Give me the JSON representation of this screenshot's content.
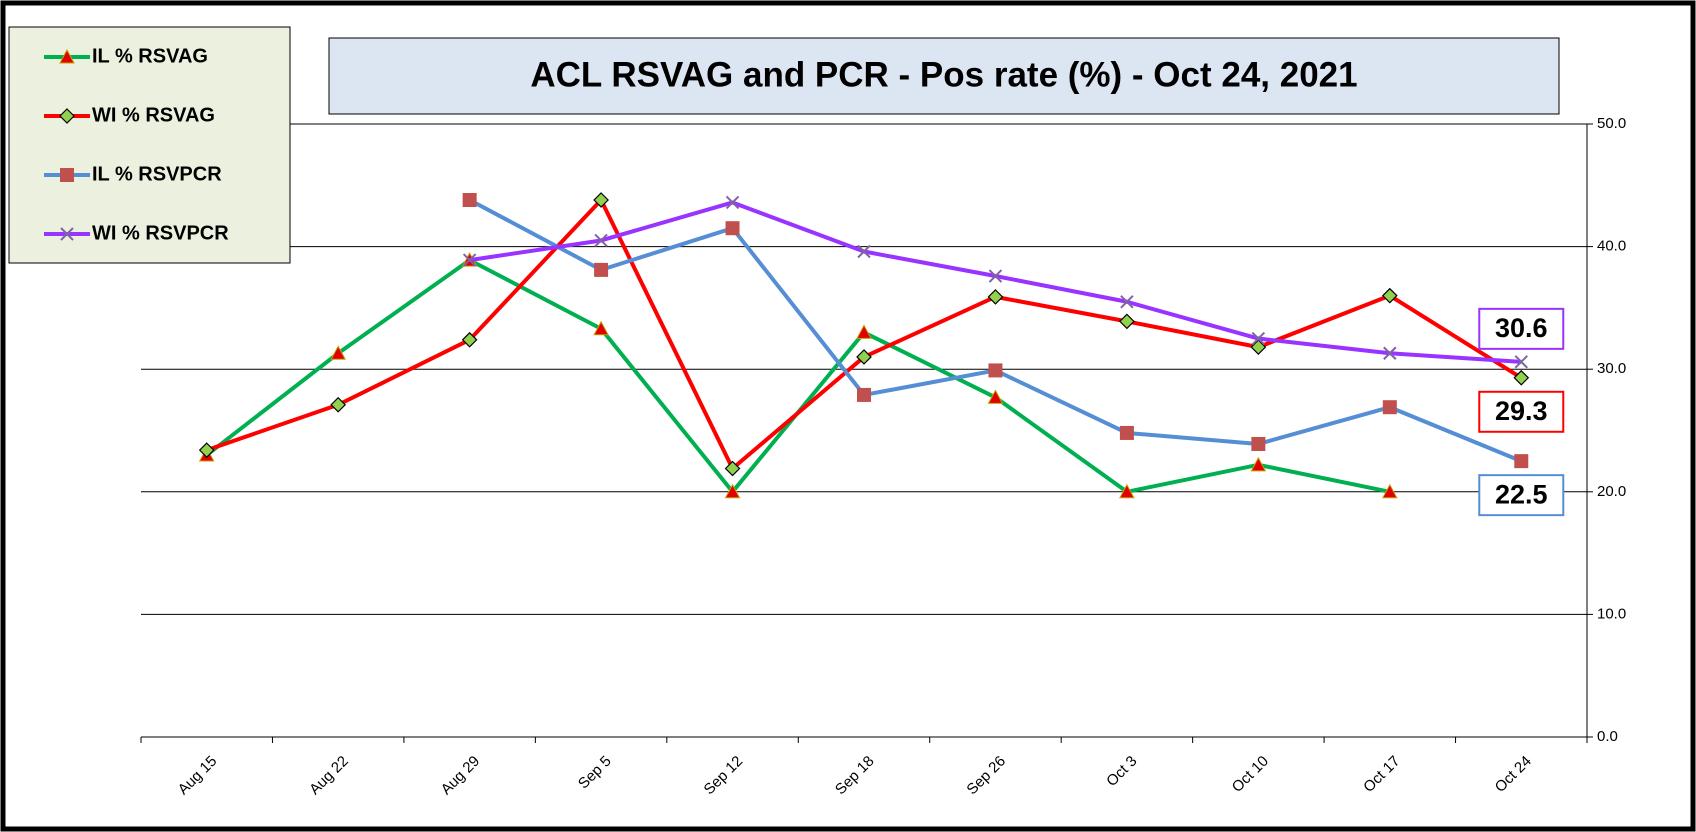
{
  "chart_data": {
    "type": "line",
    "title": "ACL RSVAG and PCR - Pos rate (%) - Oct 24, 2021",
    "categories": [
      "Aug 15",
      "Aug 22",
      "Aug 29",
      "Sep 5",
      "Sep 12",
      "Sep 18",
      "Sep 26",
      "Oct 3",
      "Oct 10",
      "Oct 17",
      "Oct 24"
    ],
    "series": [
      {
        "name": "IL % RSVAG",
        "color": "#00b050",
        "marker": "triangle",
        "values": [
          23.0,
          31.3,
          38.9,
          33.3,
          20.0,
          33.0,
          27.7,
          20.0,
          22.2,
          20.0,
          null
        ]
      },
      {
        "name": "WI % RSVAG",
        "color": "#ff0000",
        "marker": "diamond",
        "data_label": "last",
        "values": [
          23.4,
          27.1,
          32.4,
          43.8,
          21.9,
          31.0,
          35.9,
          33.9,
          31.8,
          36.0,
          29.3
        ]
      },
      {
        "name": "IL % RSVPCR",
        "color": "#558ed5",
        "marker": "square",
        "data_label": "last",
        "values": [
          null,
          null,
          43.8,
          38.1,
          41.5,
          27.9,
          29.9,
          24.8,
          23.9,
          26.9,
          22.5
        ]
      },
      {
        "name": "WI % RSVPCR",
        "color": "#9933ff",
        "marker": "x",
        "data_label": "last",
        "values": [
          null,
          null,
          38.9,
          40.5,
          43.6,
          39.6,
          37.6,
          35.5,
          32.5,
          31.3,
          30.6
        ]
      }
    ],
    "ylim": [
      0,
      50
    ],
    "yticks": [
      {
        "value": 0,
        "label": "0.0"
      },
      {
        "value": 10,
        "label": "10.0"
      },
      {
        "value": 20,
        "label": "20.0"
      },
      {
        "value": 30,
        "label": "30.0"
      },
      {
        "value": 40,
        "label": "40.0"
      },
      {
        "value": 50,
        "label": "50.0"
      }
    ],
    "grid": true,
    "legend": "top-left"
  }
}
